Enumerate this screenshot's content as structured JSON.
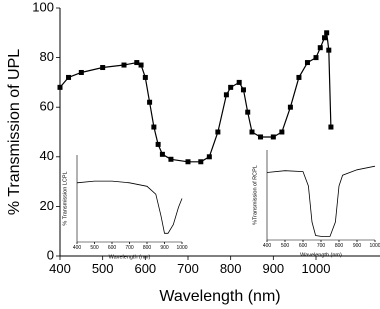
{
  "chart_data": [
    {
      "type": "line",
      "marker": "square",
      "color": "#000000",
      "xlabel": "Wavelength (nm)",
      "ylabel": "% Transmission of UPL",
      "xlim": [
        400,
        1150
      ],
      "ylim": [
        0,
        100
      ],
      "xticks": [
        400,
        500,
        600,
        700,
        800,
        900,
        1000
      ],
      "yticks": [
        0,
        20,
        40,
        60,
        80,
        100
      ],
      "x": [
        400,
        420,
        450,
        500,
        550,
        580,
        590,
        600,
        610,
        620,
        630,
        640,
        660,
        700,
        730,
        750,
        770,
        790,
        800,
        820,
        830,
        840,
        850,
        870,
        900,
        920,
        940,
        960,
        980,
        1000,
        1010,
        1020,
        1025,
        1030,
        1035
      ],
      "values": [
        68,
        72,
        74,
        76,
        77,
        78,
        77,
        72,
        62,
        52,
        45,
        41,
        39,
        38,
        38,
        40,
        50,
        65,
        68,
        70,
        67,
        58,
        50,
        48,
        48,
        50,
        60,
        72,
        78,
        80,
        84,
        88,
        90,
        83,
        52
      ]
    },
    {
      "type": "line",
      "color": "#000000",
      "xlabel": "Wavelength (nm)",
      "ylabel": "% Transmission LCPL",
      "xlim": [
        400,
        1000
      ],
      "ylim": [
        0,
        100
      ],
      "xticks": [
        400,
        500,
        600,
        700,
        800,
        900,
        1000
      ],
      "x": [
        400,
        500,
        600,
        700,
        800,
        850,
        880,
        900,
        920,
        950,
        980,
        1000
      ],
      "values": [
        68,
        70,
        70,
        68,
        64,
        55,
        30,
        10,
        10,
        20,
        40,
        50
      ]
    },
    {
      "type": "line",
      "color": "#000000",
      "xlabel": "Wavelength (nm)",
      "ylabel": "%Transmission of RCPL",
      "xlim": [
        400,
        1000
      ],
      "ylim": [
        0,
        100
      ],
      "xticks": [
        400,
        500,
        600,
        700,
        800,
        900,
        1000
      ],
      "x": [
        400,
        500,
        600,
        630,
        650,
        670,
        700,
        750,
        780,
        800,
        820,
        900,
        1000
      ],
      "values": [
        75,
        77,
        76,
        60,
        20,
        5,
        4,
        4,
        20,
        60,
        72,
        78,
        82
      ]
    }
  ]
}
